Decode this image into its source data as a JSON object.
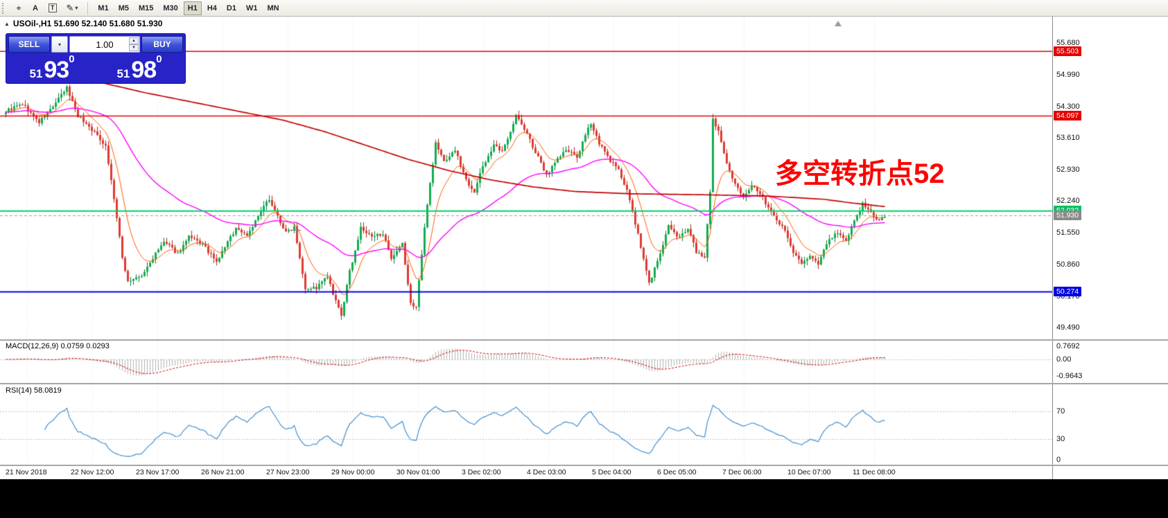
{
  "toolbar": {
    "tools": [
      {
        "name": "crosshair",
        "glyph": "⌖"
      },
      {
        "name": "text-arrow",
        "glyph": "A"
      },
      {
        "name": "text-label",
        "glyph": "T"
      },
      {
        "name": "draw-shapes",
        "glyph": "✎"
      }
    ],
    "timeframes": [
      "M1",
      "M5",
      "M15",
      "M30",
      "H1",
      "H4",
      "D1",
      "W1",
      "MN"
    ],
    "active_timeframe": "H1"
  },
  "icons": {
    "collapse": "▲",
    "dropdown": "▾",
    "spin_up": "▲",
    "spin_down": "▼"
  },
  "chart_header": {
    "text": "USOil-,H1  51.690 52.140 51.680 51.930",
    "symbol": "USOil-",
    "period": "H1",
    "open": "51.690",
    "high": "52.140",
    "low": "51.680",
    "close": "51.930"
  },
  "trade_panel": {
    "sell_label": "SELL",
    "buy_label": "BUY",
    "volume": "1.00",
    "sell_price": {
      "prefix": "51",
      "big": "93",
      "pip": "0"
    },
    "buy_price": {
      "prefix": "51",
      "big": "98",
      "pip": "0"
    }
  },
  "price_axis": {
    "ticks": [
      "55.680",
      "54.990",
      "54.300",
      "53.610",
      "52.930",
      "52.240",
      "51.550",
      "50.860",
      "50.170",
      "49.490"
    ],
    "badges": [
      {
        "label": "55.503",
        "color": "#e60000"
      },
      {
        "label": "54.097",
        "color": "#e60000"
      },
      {
        "label": "52.032",
        "color": "#00c060"
      },
      {
        "label": "51.930",
        "color": "#8a8a8a"
      },
      {
        "label": "50.274",
        "color": "#0000e0"
      }
    ],
    "macd_scale": [
      "0.7692",
      "0.00",
      "-0.9643"
    ],
    "rsi_scale": [
      "70",
      "30",
      "0"
    ]
  },
  "time_axis": [
    "21 Nov 2018",
    "22 Nov 12:00",
    "23 Nov 17:00",
    "26 Nov 21:00",
    "27 Nov 23:00",
    "29 Nov 00:00",
    "30 Nov 01:00",
    "3 Dec 02:00",
    "4 Dec 03:00",
    "5 Dec 04:00",
    "6 Dec 05:00",
    "7 Dec 06:00",
    "10 Dec 07:00",
    "11 Dec 08:00"
  ],
  "chart_data": {
    "type": "candlestick",
    "symbol": "USOil",
    "timeframe": "H1",
    "bars": 318,
    "last_ohlc": {
      "open": 51.69,
      "high": 52.14,
      "low": 51.68,
      "close": 51.93
    },
    "visible_price_range": [
      49.26,
      56.15
    ],
    "close_waypoints": [
      [
        0,
        54.2
      ],
      [
        6,
        54.35
      ],
      [
        12,
        53.95
      ],
      [
        17,
        54.3
      ],
      [
        22,
        54.7
      ],
      [
        26,
        54.1
      ],
      [
        31,
        53.8
      ],
      [
        36,
        53.45
      ],
      [
        39,
        52.3
      ],
      [
        42,
        51.0
      ],
      [
        44,
        50.5
      ],
      [
        49,
        50.6
      ],
      [
        53,
        51.0
      ],
      [
        57,
        51.35
      ],
      [
        62,
        51.1
      ],
      [
        66,
        51.45
      ],
      [
        71,
        51.3
      ],
      [
        76,
        50.9
      ],
      [
        79,
        51.25
      ],
      [
        83,
        51.65
      ],
      [
        87,
        51.5
      ],
      [
        91,
        51.9
      ],
      [
        95,
        52.3
      ],
      [
        98,
        51.9
      ],
      [
        101,
        51.55
      ],
      [
        104,
        51.7
      ],
      [
        108,
        50.35
      ],
      [
        112,
        50.35
      ],
      [
        116,
        50.6
      ],
      [
        118,
        50.2
      ],
      [
        121,
        49.75
      ],
      [
        124,
        50.7
      ],
      [
        128,
        51.65
      ],
      [
        132,
        51.45
      ],
      [
        136,
        51.55
      ],
      [
        139,
        50.95
      ],
      [
        143,
        51.3
      ],
      [
        146,
        50.0
      ],
      [
        148,
        49.95
      ],
      [
        152,
        52.2
      ],
      [
        155,
        53.5
      ],
      [
        158,
        53.1
      ],
      [
        162,
        53.35
      ],
      [
        166,
        52.7
      ],
      [
        169,
        52.45
      ],
      [
        172,
        53.0
      ],
      [
        176,
        53.45
      ],
      [
        179,
        53.3
      ],
      [
        184,
        54.1
      ],
      [
        188,
        53.7
      ],
      [
        191,
        53.3
      ],
      [
        195,
        52.8
      ],
      [
        198,
        53.1
      ],
      [
        202,
        53.35
      ],
      [
        206,
        53.2
      ],
      [
        211,
        53.95
      ],
      [
        214,
        53.5
      ],
      [
        217,
        53.2
      ],
      [
        221,
        52.9
      ],
      [
        224,
        52.5
      ],
      [
        228,
        51.5
      ],
      [
        232,
        50.45
      ],
      [
        236,
        51.1
      ],
      [
        239,
        51.7
      ],
      [
        242,
        51.45
      ],
      [
        246,
        51.65
      ],
      [
        249,
        51.15
      ],
      [
        252,
        51.0
      ],
      [
        254,
        52.4
      ],
      [
        255,
        54.0
      ],
      [
        257,
        53.75
      ],
      [
        259,
        53.3
      ],
      [
        261,
        52.9
      ],
      [
        263,
        52.6
      ],
      [
        266,
        52.3
      ],
      [
        269,
        52.6
      ],
      [
        272,
        52.4
      ],
      [
        274,
        52.2
      ],
      [
        278,
        51.85
      ],
      [
        281,
        51.6
      ],
      [
        284,
        51.1
      ],
      [
        287,
        50.9
      ],
      [
        290,
        51.05
      ],
      [
        293,
        50.85
      ],
      [
        296,
        51.3
      ],
      [
        299,
        51.55
      ],
      [
        303,
        51.4
      ],
      [
        306,
        51.8
      ],
      [
        309,
        52.2
      ],
      [
        312,
        52.0
      ],
      [
        314,
        51.8
      ],
      [
        317,
        51.93
      ]
    ],
    "levels": [
      {
        "name": "resistance-upper",
        "price": 55.503,
        "color": "#e60000",
        "style": "solid",
        "width": 1.5
      },
      {
        "name": "resistance-lower",
        "price": 54.097,
        "color": "#e60000",
        "style": "solid",
        "width": 1.5
      },
      {
        "name": "pivot-green",
        "price": 52.032,
        "color": "#00d26a",
        "style": "solid",
        "width": 2
      },
      {
        "name": "support-blue",
        "price": 50.274,
        "color": "#0000ee",
        "style": "solid",
        "width": 2
      },
      {
        "name": "current-price",
        "price": 51.93,
        "color": "#a0a0a0",
        "style": "dashed",
        "width": 1
      }
    ],
    "moving_averages": [
      {
        "name": "fast-ma",
        "period": 10,
        "color": "#ff5a00",
        "source": "ema"
      },
      {
        "name": "medium-ma",
        "period": 55,
        "color": "#ff00ff",
        "source": "ema"
      },
      {
        "name": "slow-ma",
        "color": "#c00000",
        "waypoints": [
          [
            0,
            55.3
          ],
          [
            25,
            54.95
          ],
          [
            50,
            54.6
          ],
          [
            75,
            54.3
          ],
          [
            100,
            54.0
          ],
          [
            115,
            53.75
          ],
          [
            130,
            53.45
          ],
          [
            145,
            53.15
          ],
          [
            160,
            52.9
          ],
          [
            175,
            52.7
          ],
          [
            190,
            52.55
          ],
          [
            205,
            52.45
          ],
          [
            225,
            52.4
          ],
          [
            250,
            52.38
          ],
          [
            275,
            52.35
          ],
          [
            295,
            52.28
          ],
          [
            305,
            52.2
          ],
          [
            317,
            52.12
          ]
        ]
      }
    ],
    "indicators": {
      "macd": {
        "label": "MACD(12,26,9) 0.0759 0.0293",
        "params": [
          12,
          26,
          9
        ],
        "values": [
          0.0759,
          0.0293
        ],
        "scale": [
          0.7692,
          0.0,
          -0.9643
        ],
        "histogram_color": "#b0b0b0",
        "signal_color": "#cc0000"
      },
      "rsi": {
        "label": "RSI(14) 58.0819",
        "period": 14,
        "value": 58.0819,
        "levels": [
          70,
          30,
          0
        ],
        "line_color": "#3e8ed0"
      }
    },
    "annotation": {
      "text": "多空转折点52",
      "color": "#fe0000"
    }
  }
}
